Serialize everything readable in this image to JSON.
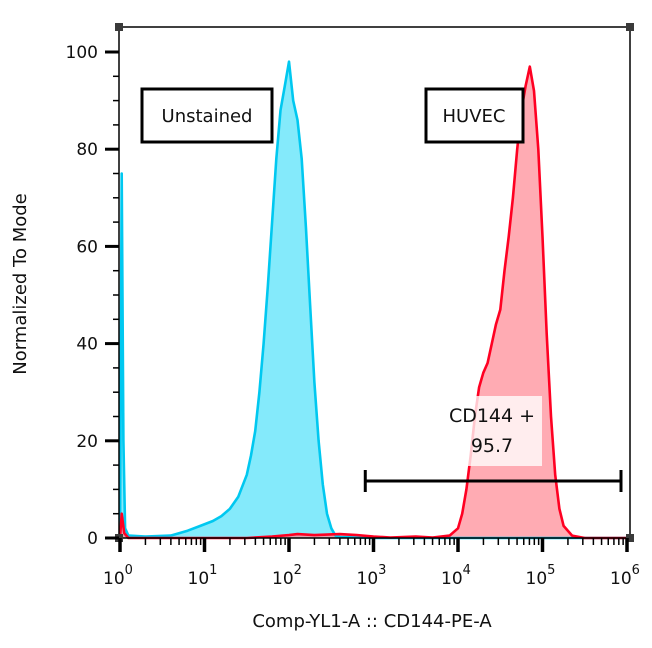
{
  "chart_data": {
    "type": "area",
    "title": "",
    "xlabel": "Comp-YL1-A :: CD144-PE-A",
    "ylabel": "Normalized To Mode",
    "xscale": "biexponential",
    "xlim_log10": [
      -0.05,
      6.05
    ],
    "ylim": [
      0,
      100
    ],
    "grid": false,
    "x_ticks": [
      {
        "base": "10",
        "exp": "0",
        "log10": 0
      },
      {
        "base": "10",
        "exp": "1",
        "log10": 1
      },
      {
        "base": "10",
        "exp": "2",
        "log10": 2
      },
      {
        "base": "10",
        "exp": "3",
        "log10": 3
      },
      {
        "base": "10",
        "exp": "4",
        "log10": 4
      },
      {
        "base": "10",
        "exp": "5",
        "log10": 5
      },
      {
        "base": "10",
        "exp": "6",
        "log10": 6
      }
    ],
    "y_ticks": [
      "0",
      "20",
      "40",
      "60",
      "80",
      "100"
    ],
    "series": [
      {
        "name": "Unstained",
        "line_color": "#00c8f0",
        "fill_color": "#7de9fb",
        "points_log10": [
          [
            0.0,
            0
          ],
          [
            0.02,
            75
          ],
          [
            0.04,
            20
          ],
          [
            0.06,
            2
          ],
          [
            0.1,
            0.5
          ],
          [
            0.3,
            0.3
          ],
          [
            0.6,
            0.5
          ],
          [
            0.8,
            1.5
          ],
          [
            0.95,
            2.5
          ],
          [
            1.1,
            3.5
          ],
          [
            1.2,
            4.5
          ],
          [
            1.3,
            6
          ],
          [
            1.4,
            8.5
          ],
          [
            1.5,
            13
          ],
          [
            1.55,
            17
          ],
          [
            1.6,
            22
          ],
          [
            1.65,
            30
          ],
          [
            1.7,
            40
          ],
          [
            1.75,
            52
          ],
          [
            1.8,
            65
          ],
          [
            1.85,
            78
          ],
          [
            1.9,
            88
          ],
          [
            1.95,
            93
          ],
          [
            2.0,
            98
          ],
          [
            2.05,
            90
          ],
          [
            2.1,
            86
          ],
          [
            2.15,
            78
          ],
          [
            2.2,
            64
          ],
          [
            2.25,
            48
          ],
          [
            2.3,
            32
          ],
          [
            2.35,
            20
          ],
          [
            2.4,
            11
          ],
          [
            2.45,
            5
          ],
          [
            2.5,
            2
          ],
          [
            2.55,
            0.5
          ],
          [
            2.6,
            0.2
          ],
          [
            3.0,
            0
          ],
          [
            6.05,
            0
          ]
        ]
      },
      {
        "name": "HUVEC",
        "line_color": "#ff0022",
        "fill_color": "#ff8a96",
        "points_log10": [
          [
            0.0,
            0
          ],
          [
            0.02,
            5
          ],
          [
            0.05,
            1
          ],
          [
            0.1,
            0
          ],
          [
            1.5,
            0
          ],
          [
            1.8,
            0.3
          ],
          [
            2.0,
            0.6
          ],
          [
            2.1,
            0.8
          ],
          [
            2.3,
            0.6
          ],
          [
            2.6,
            0.8
          ],
          [
            2.8,
            0.6
          ],
          [
            3.0,
            0.3
          ],
          [
            3.2,
            0.1
          ],
          [
            3.5,
            0.3
          ],
          [
            3.7,
            0.1
          ],
          [
            3.9,
            0.5
          ],
          [
            4.0,
            2
          ],
          [
            4.05,
            5
          ],
          [
            4.1,
            10
          ],
          [
            4.15,
            17
          ],
          [
            4.2,
            25
          ],
          [
            4.25,
            31
          ],
          [
            4.3,
            34
          ],
          [
            4.35,
            36
          ],
          [
            4.4,
            40
          ],
          [
            4.45,
            44
          ],
          [
            4.5,
            47
          ],
          [
            4.55,
            55
          ],
          [
            4.6,
            62
          ],
          [
            4.65,
            70
          ],
          [
            4.7,
            80
          ],
          [
            4.75,
            88
          ],
          [
            4.8,
            93
          ],
          [
            4.85,
            97
          ],
          [
            4.9,
            92
          ],
          [
            4.95,
            80
          ],
          [
            5.0,
            62
          ],
          [
            5.05,
            42
          ],
          [
            5.1,
            25
          ],
          [
            5.15,
            13
          ],
          [
            5.2,
            6
          ],
          [
            5.25,
            2.5
          ],
          [
            5.35,
            0.5
          ],
          [
            5.5,
            0
          ],
          [
            6.05,
            0
          ]
        ]
      }
    ],
    "annotations": [
      {
        "kind": "sample-label",
        "text": "Unstained"
      },
      {
        "kind": "sample-label",
        "text": "HUVEC"
      }
    ],
    "gate": {
      "name": "CD144 +",
      "value": "95.7",
      "range_log10": [
        2.95,
        6.0
      ]
    }
  }
}
